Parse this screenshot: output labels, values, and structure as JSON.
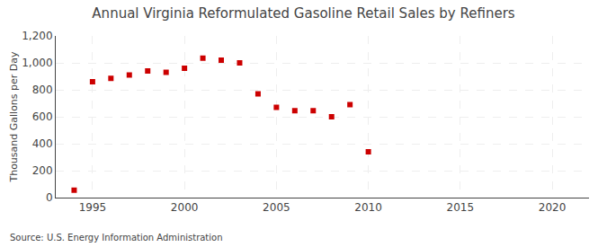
{
  "chart_data": {
    "type": "scatter",
    "title": "Annual Virginia Reformulated Gasoline Retail Sales by Refiners",
    "ylabel": "Thousand Gallons per Day",
    "annotations": [
      "Source: U.S. Energy Information Administration"
    ],
    "x": [
      1994,
      1995,
      1996,
      1997,
      1998,
      1999,
      2000,
      2001,
      2002,
      2003,
      2004,
      2005,
      2006,
      2007,
      2008,
      2009,
      2010
    ],
    "values": [
      55,
      860,
      885,
      910,
      940,
      930,
      960,
      1035,
      1020,
      1000,
      770,
      670,
      645,
      645,
      600,
      690,
      340
    ],
    "color": "#cc0000",
    "marker": "square",
    "xlim": [
      1993,
      2022
    ],
    "xticks": [
      1995,
      2000,
      2005,
      2010,
      2015,
      2020
    ],
    "ylim": [
      0,
      1200
    ],
    "yticks": [
      0,
      200,
      400,
      600,
      800,
      {
        "value": 1000,
        "label": "1,000"
      },
      {
        "value": 1200,
        "label": "1,200"
      }
    ],
    "grid": true
  }
}
